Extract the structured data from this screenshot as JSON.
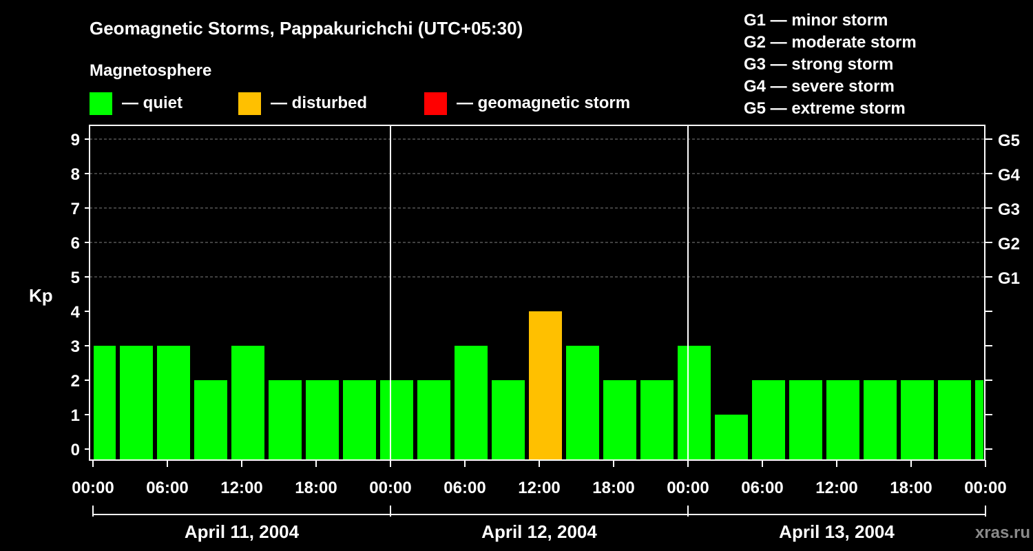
{
  "chart_data": {
    "type": "bar",
    "title": "Geomagnetic Storms, Pappakurichchi (UTC+05:30)",
    "legend_title": "Magnetosphere",
    "legend": [
      {
        "label": "— quiet",
        "color": "#00ff00"
      },
      {
        "label": "— disturbed",
        "color": "#ffc000"
      },
      {
        "label": "— geomagnetic storm",
        "color": "#ff0000"
      }
    ],
    "scale_legend": [
      "G1 — minor storm",
      "G2 — moderate storm",
      "G3 — strong storm",
      "G4 — severe storm",
      "G5 — extreme storm"
    ],
    "ylabel": "Kp",
    "ylim": [
      0,
      9
    ],
    "yticks": [
      "0",
      "1",
      "2",
      "3",
      "4",
      "5",
      "6",
      "7",
      "8",
      "9"
    ],
    "right_ticks": [
      {
        "kp": 5,
        "label": "G1"
      },
      {
        "kp": 6,
        "label": "G2"
      },
      {
        "kp": 7,
        "label": "G3"
      },
      {
        "kp": 8,
        "label": "G4"
      },
      {
        "kp": 9,
        "label": "G5"
      }
    ],
    "xticks": [
      "00:00",
      "06:00",
      "12:00",
      "18:00",
      "00:00",
      "06:00",
      "12:00",
      "18:00",
      "00:00",
      "06:00",
      "12:00",
      "18:00",
      "00:00"
    ],
    "days": [
      "April 11, 2004",
      "April 12, 2004",
      "April 13, 2004"
    ],
    "values": [
      3,
      3,
      3,
      2,
      3,
      2,
      2,
      2,
      2,
      2,
      3,
      2,
      4,
      3,
      2,
      2,
      3,
      1,
      2,
      2,
      2,
      2,
      2,
      2,
      2
    ],
    "colors": {
      "quiet": "#00ff00",
      "disturbed": "#ffc000",
      "storm": "#ff0000",
      "grid": "#808080"
    },
    "grid": true
  },
  "watermark": "xras.ru"
}
